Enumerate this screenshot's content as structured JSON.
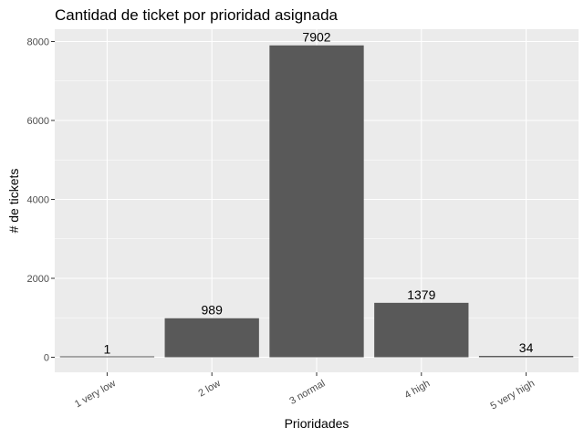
{
  "chart_data": {
    "type": "bar",
    "title": "Cantidad de ticket por prioridad asignada",
    "xlabel": "Prioridades",
    "ylabel": "# de tickets",
    "categories": [
      "1 very low",
      "2 low",
      "3 normal",
      "4 high",
      "5 very high"
    ],
    "values": [
      1,
      989,
      7902,
      1379,
      34
    ],
    "data_labels": [
      "1",
      "989",
      "7902",
      "1379",
      "34"
    ],
    "ylim": [
      0,
      8297
    ],
    "y_ticks": [
      0,
      2000,
      4000,
      6000,
      8000
    ],
    "y_tick_labels": [
      "0",
      "2000",
      "4000",
      "6000",
      "8000"
    ],
    "grid": true,
    "colors": {
      "panel": "#ebebeb",
      "grid": "#ffffff",
      "bar": "#595959"
    }
  }
}
